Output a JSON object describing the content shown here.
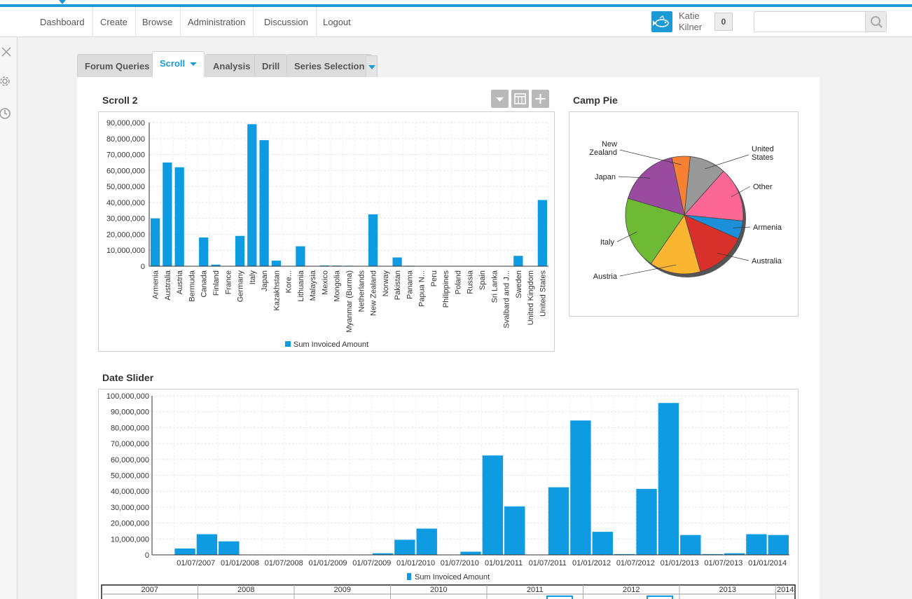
{
  "nav": {
    "items": [
      "Dashboard",
      "Create",
      "Browse",
      "Administration",
      "Discussion",
      "Logout"
    ],
    "user_first": "Katie",
    "user_last": "Kilner",
    "badge_count": "0",
    "search_placeholder": ""
  },
  "tabs": [
    "Forum Queries",
    "Scroll",
    "Analysis",
    "Drill",
    "Series Selection"
  ],
  "widgets": {
    "scroll_title": "Scroll 2",
    "pie_title": "Camp Pie",
    "date_title": "Date Slider"
  },
  "colors": {
    "accent": "#1b9ad6",
    "bar": "#0f9be2"
  },
  "chart_data": [
    {
      "type": "bar",
      "title": "",
      "categories": [
        "Armenia",
        "Australia",
        "Austria",
        "Bermuda",
        "Canada",
        "Finland",
        "France",
        "Germany",
        "Italy",
        "Japan",
        "Kazakhstan",
        "Kore...",
        "Lithuania",
        "Malaysia",
        "Mexico",
        "Mongolia",
        "Myanmar (Burma)",
        "Netherlands",
        "New Zealand",
        "Norway",
        "Pakistan",
        "Panama",
        "Papua N...",
        "Peru",
        "Philippines",
        "Poland",
        "Russia",
        "Spain",
        "Sri Lanka",
        "Svalbard and J...",
        "Sweden",
        "United Kingdom",
        "United States"
      ],
      "series": [
        {
          "name": "Sum Invoiced Amount",
          "values": [
            30000000,
            65000000,
            62000000,
            0,
            18000000,
            1000000,
            0,
            19000000,
            89000000,
            79000000,
            3500000,
            0,
            12500000,
            0,
            500000,
            400000,
            300000,
            200000,
            32500000,
            0,
            5500000,
            300000,
            0,
            200000,
            200000,
            0,
            0,
            200000,
            0,
            0,
            6500000,
            0,
            41500000
          ]
        }
      ],
      "ylim": [
        0,
        90000000
      ],
      "yticks": [
        "0",
        "10,000,000",
        "20,000,000",
        "30,000,000",
        "40,000,000",
        "50,000,000",
        "60,000,000",
        "70,000,000",
        "80,000,000",
        "90,000,000"
      ],
      "legend": "bottom",
      "grid": true
    },
    {
      "type": "pie",
      "title": "",
      "slices": [
        {
          "label": "United States",
          "value": 10,
          "color": "#999999"
        },
        {
          "label": "Other",
          "value": 15,
          "color": "#fd6796"
        },
        {
          "label": "Armenia",
          "value": 5,
          "color": "#1b8fd8"
        },
        {
          "label": "Australia",
          "value": 14,
          "color": "#d8312b"
        },
        {
          "label": "Austria",
          "value": 14,
          "color": "#fbb631"
        },
        {
          "label": "Italy",
          "value": 20,
          "color": "#6fba35"
        },
        {
          "label": "Japan",
          "value": 17,
          "color": "#9a4a9f"
        },
        {
          "label": "New Zealand",
          "value": 5,
          "color": "#f68133"
        }
      ]
    },
    {
      "type": "bar",
      "title": "",
      "x_start": "2007-01-01",
      "period": "quarter",
      "xticks": [
        "01/07/2007",
        "01/01/2008",
        "01/07/2008",
        "01/01/2009",
        "01/07/2009",
        "01/01/2010",
        "01/07/2010",
        "01/01/2011",
        "01/07/2011",
        "01/01/2012",
        "01/07/2012",
        "01/01/2013",
        "01/07/2013",
        "01/01/2014"
      ],
      "series": [
        {
          "name": "Sum Invoiced Amount",
          "values": [
            0,
            4000000,
            13000000,
            8500000,
            0,
            0,
            0,
            0,
            0,
            0,
            1000000,
            9500000,
            16500000,
            0,
            2000000,
            62500000,
            30500000,
            0,
            42500000,
            84500000,
            14500000,
            500000,
            41500000,
            95500000,
            12500000,
            500000,
            1000000,
            13000000,
            12500000
          ]
        }
      ],
      "ylim": [
        0,
        100000000
      ],
      "yticks": [
        "0",
        "10,000,000",
        "20,000,000",
        "30,000,000",
        "40,000,000",
        "50,000,000",
        "60,000,000",
        "70,000,000",
        "80,000,000",
        "90,000,000",
        "100,000,000"
      ],
      "legend": "bottom",
      "grid": true
    }
  ],
  "slider_years": [
    "2007",
    "2008",
    "2009",
    "2010",
    "2011",
    "2012",
    "2013",
    "2014"
  ]
}
